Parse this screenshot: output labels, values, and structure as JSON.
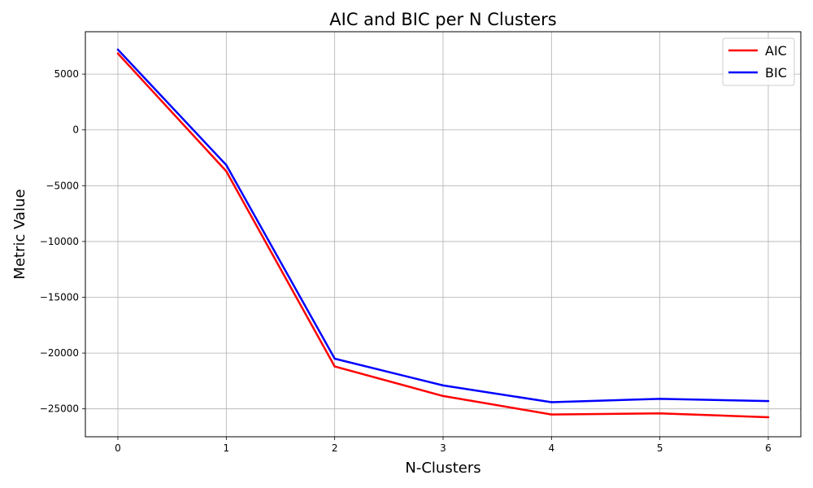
{
  "chart_data": {
    "type": "line",
    "title": "AIC and BIC per N Clusters",
    "xlabel": "N-Clusters",
    "ylabel": "Metric Value",
    "x": [
      0,
      1,
      2,
      3,
      4,
      5,
      6
    ],
    "xlim": [
      -0.3,
      6.3
    ],
    "ylim": [
      -27500,
      8800
    ],
    "xticks": [
      0,
      1,
      2,
      3,
      4,
      5,
      6
    ],
    "yticks": [
      5000,
      0,
      -5000,
      -10000,
      -15000,
      -20000,
      -25000
    ],
    "ytick_labels": [
      "5000",
      "0",
      "−5000",
      "−10000",
      "−15000",
      "−20000",
      "−25000"
    ],
    "grid": true,
    "legend_position": "top-right",
    "series": [
      {
        "name": "AIC",
        "color": "#ff0000",
        "values": [
          6850,
          -3700,
          -21200,
          -23850,
          -25500,
          -25400,
          -25750
        ]
      },
      {
        "name": "BIC",
        "color": "#0000ff",
        "values": [
          7200,
          -3150,
          -20500,
          -22900,
          -24400,
          -24100,
          -24300
        ]
      }
    ]
  }
}
